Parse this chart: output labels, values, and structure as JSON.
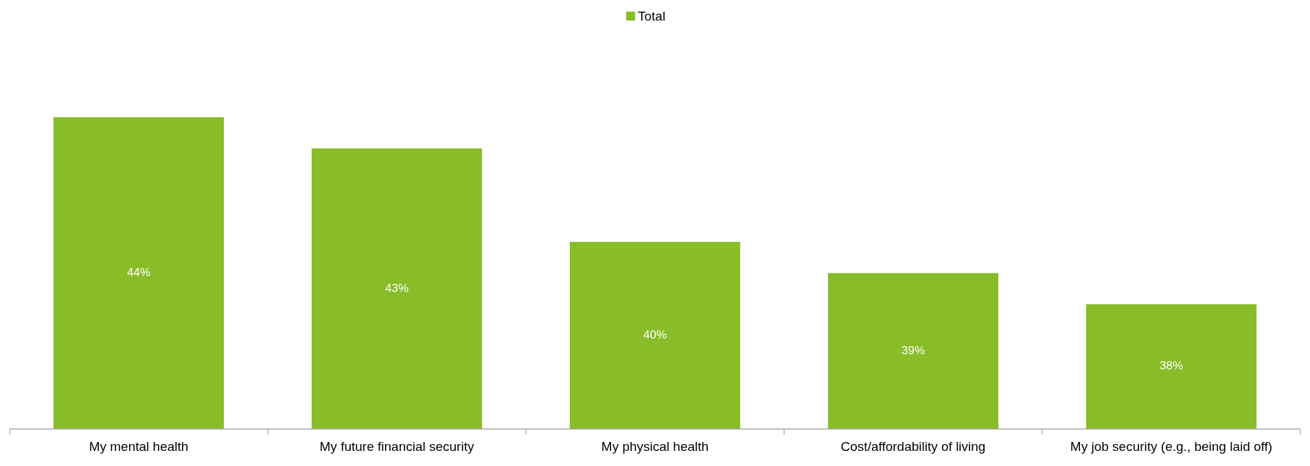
{
  "chart_data": {
    "type": "bar",
    "categories": [
      "My mental health",
      "My future financial security",
      "My physical health",
      "Cost/affordability of living",
      "My job security (e.g., being laid off)"
    ],
    "series": [
      {
        "name": "Total",
        "color": "#88bc28",
        "values": [
          44,
          43,
          40,
          39,
          38
        ],
        "value_labels": [
          "44%",
          "43%",
          "40%",
          "39%",
          "38%"
        ]
      }
    ],
    "ylim": [
      34,
      44
    ],
    "tick_labels": "x",
    "legend": "top"
  }
}
